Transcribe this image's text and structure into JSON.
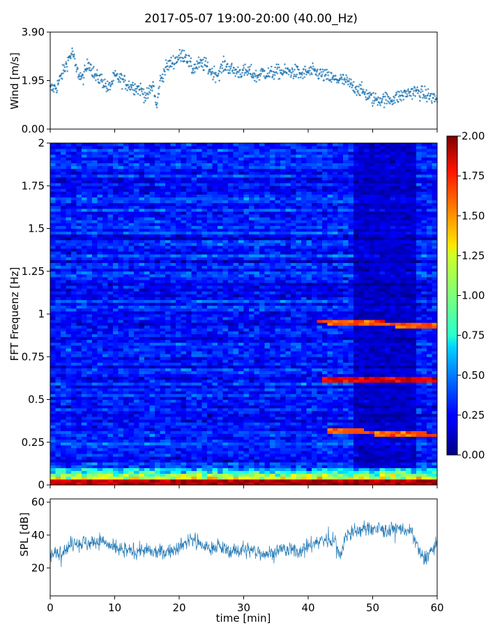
{
  "figure": {
    "title": "2017-05-07 19:00-20:00 (40.00_Hz)",
    "background": "#ffffff",
    "series_color": "#1f77b4"
  },
  "chart_data": [
    {
      "id": "wind",
      "type": "scatter",
      "title": "",
      "xlabel": "",
      "ylabel": "Wind [m/s]",
      "xlim": [
        0,
        60
      ],
      "ylim": [
        0,
        3.9
      ],
      "yticks": [
        "0.00",
        "1.95",
        "3.90"
      ],
      "ytick_values": [
        0,
        1.95,
        3.9
      ],
      "color": "#1f77b4",
      "marker": "plus",
      "x": [
        0,
        1,
        2,
        3,
        3.5,
        4,
        5,
        6,
        7,
        8,
        9,
        10,
        11,
        12,
        13,
        14,
        15,
        16,
        16.5,
        17,
        18,
        19,
        20,
        21,
        22,
        23,
        24,
        25,
        26,
        27,
        28,
        29,
        30,
        31,
        32,
        33,
        34,
        35,
        36,
        37,
        38,
        39,
        40,
        41,
        42,
        43,
        44,
        45,
        46,
        47,
        48,
        49,
        50,
        51,
        52,
        53,
        54,
        55,
        56,
        57,
        58,
        59,
        60
      ],
      "y": [
        1.6,
        1.7,
        2.3,
        2.9,
        3.1,
        2.4,
        2.0,
        2.7,
        2.1,
        2.0,
        1.6,
        2.1,
        2.0,
        1.8,
        1.7,
        1.6,
        1.3,
        1.8,
        0.8,
        1.9,
        2.5,
        2.7,
        2.9,
        3.0,
        2.4,
        2.6,
        2.6,
        2.3,
        2.2,
        2.6,
        2.4,
        2.3,
        2.3,
        2.3,
        2.1,
        2.3,
        2.2,
        2.3,
        2.3,
        2.3,
        2.3,
        2.2,
        2.3,
        2.3,
        2.2,
        2.1,
        2.0,
        2.0,
        1.9,
        1.7,
        1.6,
        1.4,
        1.2,
        1.2,
        1.2,
        1.2,
        1.3,
        1.4,
        1.5,
        1.5,
        1.4,
        1.3,
        1.2
      ]
    },
    {
      "id": "spectrogram",
      "type": "heatmap",
      "title": "",
      "xlabel": "",
      "ylabel": "FFT Frequenz [Hz]",
      "xlim": [
        0,
        60
      ],
      "ylim": [
        0,
        2
      ],
      "yticks": [
        "0",
        "0.25",
        "0.5",
        "0.75",
        "1",
        "1.25",
        "1.5",
        "1.75",
        "2"
      ],
      "ytick_values": [
        0,
        0.25,
        0.5,
        0.75,
        1,
        1.25,
        1.5,
        1.75,
        2
      ],
      "colormap": "jet",
      "zlim": [
        0,
        2
      ],
      "background_level": 0.3,
      "low_frequency_band": {
        "f_max": 0.1,
        "level": 1.1
      },
      "dark_region": {
        "t_start": 47,
        "t_end": 57,
        "level": 0.15
      },
      "tonal_lines": [
        {
          "t_start": 41,
          "t_end": 60,
          "freq_start": 0.96,
          "freq_end": 0.93,
          "level": 1.6
        },
        {
          "t_start": 42,
          "t_end": 60,
          "freq_start": 0.62,
          "freq_end": 0.61,
          "level": 1.8
        },
        {
          "t_start": 43,
          "t_end": 60,
          "freq_start": 0.32,
          "freq_end": 0.29,
          "level": 1.6
        },
        {
          "t_start": 0,
          "t_end": 60,
          "freq_start": 0.02,
          "freq_end": 0.02,
          "level": 1.9
        }
      ],
      "colorbar": {
        "ticks": [
          "0.00",
          "0.25",
          "0.50",
          "0.75",
          "1.00",
          "1.25",
          "1.50",
          "1.75",
          "2.00"
        ],
        "tick_values": [
          0,
          0.25,
          0.5,
          0.75,
          1,
          1.25,
          1.5,
          1.75,
          2
        ]
      }
    },
    {
      "id": "spl",
      "type": "line",
      "title": "",
      "xlabel": "time [min]",
      "ylabel": "SPL [dB]",
      "xlim": [
        0,
        60
      ],
      "ylim": [
        3,
        62
      ],
      "yticks": [
        "20",
        "40",
        "60"
      ],
      "ytick_values": [
        20,
        40,
        60
      ],
      "xticks": [
        "0",
        "10",
        "20",
        "30",
        "40",
        "50",
        "60"
      ],
      "xtick_values": [
        0,
        10,
        20,
        30,
        40,
        50,
        60
      ],
      "color": "#1f77b4",
      "x": [
        0,
        2,
        4,
        6,
        8,
        10,
        12,
        14,
        16,
        18,
        20,
        22,
        24,
        26,
        28,
        30,
        32,
        34,
        36,
        38,
        40,
        42,
        44,
        45,
        46,
        48,
        50,
        52,
        54,
        56,
        57,
        58,
        59,
        60
      ],
      "y": [
        27,
        31,
        36,
        35,
        37,
        31,
        30,
        31,
        29,
        30,
        33,
        38,
        32,
        33,
        30,
        31,
        30,
        29,
        31,
        30,
        33,
        37,
        37,
        28,
        41,
        43,
        44,
        43,
        44,
        42,
        32,
        24,
        30,
        34
      ]
    }
  ]
}
